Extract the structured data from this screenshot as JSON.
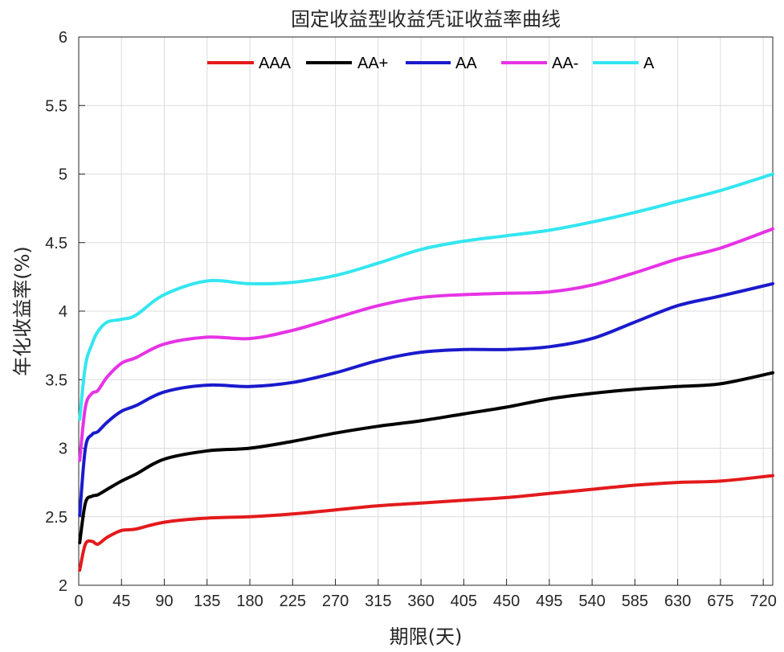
{
  "chart_data": {
    "type": "line",
    "title": "固定收益型收益凭证收益率曲线",
    "xlabel": "期限(天)",
    "ylabel": "年化收益率(%)",
    "xlim": [
      0,
      730
    ],
    "ylim": [
      2,
      6
    ],
    "xticks": [
      0,
      45,
      90,
      135,
      180,
      225,
      270,
      315,
      360,
      405,
      450,
      495,
      540,
      585,
      630,
      675,
      720
    ],
    "yticks": [
      2,
      2.5,
      3,
      3.5,
      4,
      4.5,
      5,
      5.5,
      6
    ],
    "ytick_labels": [
      "2",
      "2.5",
      "3",
      "3.5",
      "4",
      "4.5",
      "5",
      "5.5",
      "6"
    ],
    "grid": true,
    "legend": {
      "position": "top",
      "orientation": "horizontal"
    },
    "series": [
      {
        "name": "AAA",
        "color": "#e31a1c",
        "x": [
          1,
          7,
          14,
          20,
          30,
          45,
          60,
          90,
          135,
          180,
          225,
          270,
          315,
          360,
          405,
          450,
          495,
          540,
          585,
          630,
          675,
          730
        ],
        "y": [
          2.11,
          2.3,
          2.32,
          2.3,
          2.35,
          2.4,
          2.41,
          2.46,
          2.49,
          2.5,
          2.52,
          2.55,
          2.58,
          2.6,
          2.62,
          2.64,
          2.67,
          2.7,
          2.73,
          2.75,
          2.76,
          2.8
        ]
      },
      {
        "name": "AA+",
        "color": "#000000",
        "x": [
          1,
          7,
          14,
          20,
          30,
          45,
          60,
          90,
          135,
          180,
          225,
          270,
          315,
          360,
          405,
          450,
          495,
          540,
          585,
          630,
          675,
          730
        ],
        "y": [
          2.31,
          2.6,
          2.65,
          2.66,
          2.7,
          2.76,
          2.81,
          2.92,
          2.98,
          3.0,
          3.05,
          3.11,
          3.16,
          3.2,
          3.25,
          3.3,
          3.36,
          3.4,
          3.43,
          3.45,
          3.47,
          3.55
        ]
      },
      {
        "name": "AA",
        "color": "#1a1acc",
        "x": [
          1,
          7,
          14,
          20,
          30,
          45,
          60,
          90,
          135,
          180,
          225,
          270,
          315,
          360,
          405,
          450,
          495,
          540,
          585,
          630,
          675,
          730
        ],
        "y": [
          2.51,
          3.0,
          3.1,
          3.12,
          3.19,
          3.27,
          3.31,
          3.41,
          3.46,
          3.45,
          3.48,
          3.55,
          3.64,
          3.7,
          3.72,
          3.72,
          3.74,
          3.8,
          3.92,
          4.04,
          4.11,
          4.2
        ]
      },
      {
        "name": "AA-",
        "color": "#e633e6",
        "x": [
          1,
          7,
          14,
          20,
          30,
          45,
          60,
          90,
          135,
          180,
          225,
          270,
          315,
          360,
          405,
          450,
          495,
          540,
          585,
          630,
          675,
          730
        ],
        "y": [
          2.91,
          3.3,
          3.4,
          3.42,
          3.52,
          3.62,
          3.66,
          3.76,
          3.81,
          3.8,
          3.86,
          3.95,
          4.04,
          4.1,
          4.12,
          4.13,
          4.14,
          4.19,
          4.28,
          4.38,
          4.46,
          4.6
        ]
      },
      {
        "name": "A",
        "color": "#33e6f0",
        "x": [
          1,
          7,
          14,
          20,
          30,
          45,
          60,
          90,
          135,
          180,
          225,
          270,
          315,
          360,
          405,
          450,
          495,
          540,
          585,
          630,
          675,
          730
        ],
        "y": [
          3.21,
          3.6,
          3.76,
          3.85,
          3.92,
          3.94,
          3.97,
          4.12,
          4.22,
          4.2,
          4.21,
          4.26,
          4.35,
          4.45,
          4.51,
          4.55,
          4.59,
          4.65,
          4.72,
          4.8,
          4.88,
          5.0
        ]
      }
    ]
  }
}
